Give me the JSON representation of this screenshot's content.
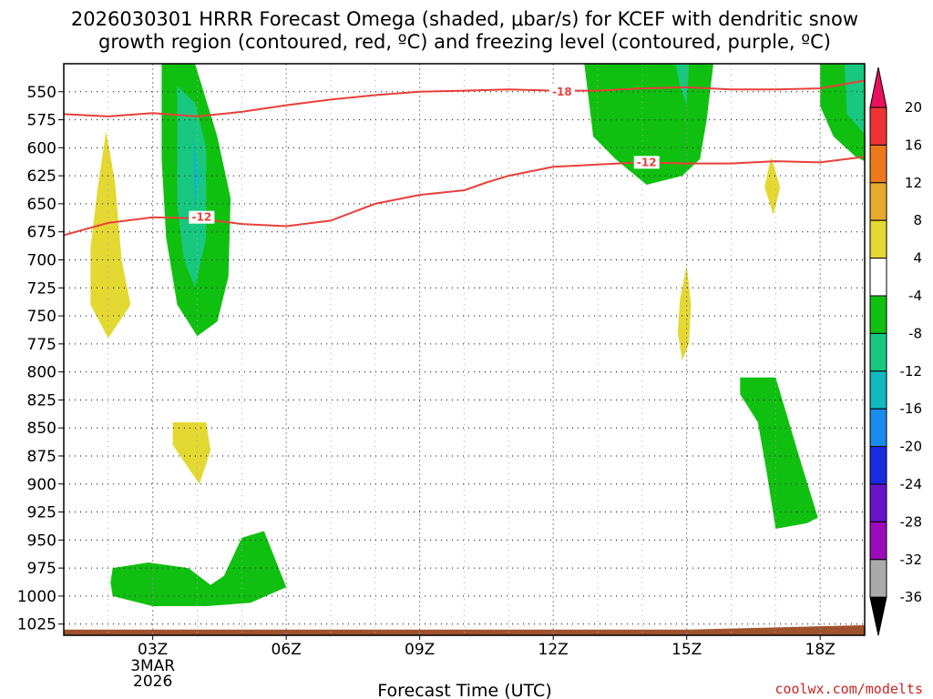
{
  "title_lines": [
    "2026030301 HRRR Forecast Omega (shaded, μbar/s) for KCEF with dendritic snow",
    "growth region (contoured, red, ºC) and freezing level (contoured, purple, ºC)"
  ],
  "credit": "coolwx.com/modelts",
  "chart_data": {
    "type": "contour",
    "title": "2026030301 HRRR Forecast Omega (shaded, μbar/s) for KCEF with dendritic snow growth region (contoured, red, ºC) and freezing level (contoured, purple, ºC)",
    "xlabel": "Forecast Time (UTC)",
    "ylabel": "",
    "xlim": [
      1.0,
      19.0
    ],
    "ylim": [
      1035,
      525
    ],
    "x_ticks": [
      {
        "value": 3,
        "label": "03Z",
        "sublabel": [
          "3MAR",
          "2026"
        ]
      },
      {
        "value": 6,
        "label": "06Z"
      },
      {
        "value": 9,
        "label": "09Z"
      },
      {
        "value": 12,
        "label": "12Z"
      },
      {
        "value": 15,
        "label": "15Z"
      },
      {
        "value": 18,
        "label": "18Z"
      }
    ],
    "y_ticks": [
      550,
      575,
      600,
      625,
      650,
      675,
      700,
      725,
      750,
      775,
      800,
      825,
      850,
      875,
      900,
      925,
      950,
      975,
      1000,
      1025
    ],
    "grid": true,
    "colorbar": {
      "labels": [
        "20",
        "16",
        "12",
        "8",
        "4",
        "-4",
        "-8",
        "-12",
        "-16",
        "-20",
        "-24",
        "-28",
        "-32",
        "-36"
      ],
      "colors": [
        "#e8115c",
        "#ec3434",
        "#ec7a1c",
        "#e8aa2c",
        "#e4d832",
        "#ffffff",
        "#10c010",
        "#18c880",
        "#10b8c0",
        "#1a8cec",
        "#1a2ce0",
        "#6a14c8",
        "#9a0cb8",
        "#aaaaaa",
        "#000000"
      ]
    },
    "shaded_regions": [
      {
        "level": "4 to 8",
        "color": "#e4d832",
        "points": [
          [
            1.95,
            585
          ],
          [
            2.15,
            630
          ],
          [
            2.3,
            700
          ],
          [
            2.5,
            740
          ],
          [
            2.0,
            770
          ],
          [
            1.6,
            740
          ],
          [
            1.6,
            690
          ],
          [
            1.75,
            640
          ]
        ]
      },
      {
        "level": "-4 to -8",
        "color": "#10c010",
        "points": [
          [
            3.2,
            525
          ],
          [
            3.95,
            525
          ],
          [
            4.45,
            590
          ],
          [
            4.75,
            645
          ],
          [
            4.7,
            715
          ],
          [
            4.45,
            755
          ],
          [
            4.0,
            768
          ],
          [
            3.55,
            740
          ],
          [
            3.3,
            680
          ],
          [
            3.2,
            610
          ]
        ]
      },
      {
        "level": "-8 to -12",
        "color": "#18c880",
        "points": [
          [
            3.55,
            545
          ],
          [
            3.95,
            560
          ],
          [
            4.2,
            600
          ],
          [
            4.2,
            680
          ],
          [
            3.95,
            725
          ],
          [
            3.7,
            700
          ],
          [
            3.55,
            650
          ]
        ]
      },
      {
        "level": "-12 to -16",
        "color": "#10b8c0",
        "points": [
          [
            3.9,
            590
          ],
          [
            4.05,
            625
          ],
          [
            3.95,
            655
          ]
        ]
      },
      {
        "level": "4 to 8",
        "color": "#e4d832",
        "points": [
          [
            3.45,
            845
          ],
          [
            4.2,
            845
          ],
          [
            4.3,
            870
          ],
          [
            4.05,
            900
          ],
          [
            3.7,
            880
          ],
          [
            3.45,
            865
          ]
        ]
      },
      {
        "level": "-4 to -8",
        "color": "#10c010",
        "points": [
          [
            2.1,
            975
          ],
          [
            2.9,
            970
          ],
          [
            3.8,
            975
          ],
          [
            4.3,
            990
          ],
          [
            4.6,
            982
          ],
          [
            5.0,
            948
          ],
          [
            5.5,
            942
          ],
          [
            6.0,
            992
          ],
          [
            5.2,
            1006
          ],
          [
            4.2,
            1009
          ],
          [
            3.0,
            1009
          ],
          [
            2.1,
            1000
          ],
          [
            2.05,
            988
          ]
        ]
      },
      {
        "level": "-4 to -8",
        "color": "#10c010",
        "points": [
          [
            12.7,
            525
          ],
          [
            15.6,
            525
          ],
          [
            15.45,
            575
          ],
          [
            15.3,
            610
          ],
          [
            14.9,
            625
          ],
          [
            14.1,
            633
          ],
          [
            13.4,
            610
          ],
          [
            12.9,
            590
          ]
        ]
      },
      {
        "level": "-8 to -12",
        "color": "#18c880",
        "points": [
          [
            14.75,
            525
          ],
          [
            15.05,
            525
          ],
          [
            15.0,
            562
          ],
          [
            14.85,
            545
          ]
        ]
      },
      {
        "level": "4 to 8",
        "color": "#e4d832",
        "points": [
          [
            16.9,
            608
          ],
          [
            17.1,
            635
          ],
          [
            16.95,
            660
          ],
          [
            16.75,
            635
          ]
        ]
      },
      {
        "level": "4 to 8",
        "color": "#e4d832",
        "points": [
          [
            15.0,
            705
          ],
          [
            15.1,
            740
          ],
          [
            15.05,
            775
          ],
          [
            14.9,
            790
          ],
          [
            14.8,
            765
          ],
          [
            14.85,
            735
          ]
        ]
      },
      {
        "level": "-4 to -8",
        "color": "#10c010",
        "points": [
          [
            18.0,
            525
          ],
          [
            19.0,
            525
          ],
          [
            19.0,
            612
          ],
          [
            18.8,
            608
          ],
          [
            18.3,
            590
          ],
          [
            18.0,
            563
          ]
        ]
      },
      {
        "level": "-8 to -12",
        "color": "#18c880",
        "points": [
          [
            18.55,
            525
          ],
          [
            19.0,
            525
          ],
          [
            19.0,
            588
          ],
          [
            18.6,
            570
          ]
        ]
      },
      {
        "level": "-4 to -8",
        "color": "#10c010",
        "points": [
          [
            16.2,
            805
          ],
          [
            17.0,
            805
          ],
          [
            17.3,
            845
          ],
          [
            17.6,
            885
          ],
          [
            17.95,
            930
          ],
          [
            17.7,
            935
          ],
          [
            17.0,
            940
          ],
          [
            16.8,
            890
          ],
          [
            16.6,
            845
          ],
          [
            16.2,
            820
          ]
        ]
      }
    ],
    "ground": {
      "color": "#a0522d",
      "points": [
        [
          1.0,
          1030
        ],
        [
          15.0,
          1030
        ],
        [
          17.0,
          1028
        ],
        [
          19.0,
          1026
        ],
        [
          19.0,
          1035
        ],
        [
          1.0,
          1035
        ]
      ]
    },
    "contours": [
      {
        "value": -18,
        "label": "-18",
        "label_at": [
          12.2,
          550
        ],
        "color": "#e8403a",
        "points": [
          [
            1.0,
            570
          ],
          [
            2.0,
            572
          ],
          [
            3.0,
            569
          ],
          [
            4.0,
            572
          ],
          [
            5.0,
            568
          ],
          [
            6.0,
            562
          ],
          [
            7.0,
            557
          ],
          [
            8.0,
            553
          ],
          [
            9.0,
            550
          ],
          [
            10.0,
            549
          ],
          [
            11.0,
            548
          ],
          [
            12.0,
            549
          ],
          [
            13.0,
            549
          ],
          [
            14.0,
            547
          ],
          [
            15.0,
            546
          ],
          [
            16.0,
            548
          ],
          [
            17.0,
            548
          ],
          [
            18.0,
            547
          ],
          [
            19.0,
            540
          ]
        ]
      },
      {
        "value": -12,
        "label": "-12",
        "label_at": [
          14.1,
          613
        ],
        "color": "#e8403a",
        "points": [
          [
            1.0,
            678
          ],
          [
            2.0,
            667
          ],
          [
            3.0,
            662
          ],
          [
            4.0,
            663
          ],
          [
            5.0,
            668
          ],
          [
            6.0,
            670
          ],
          [
            7.0,
            665
          ],
          [
            8.0,
            650
          ],
          [
            9.0,
            642
          ],
          [
            10.0,
            638
          ],
          [
            10.5,
            631
          ],
          [
            11.0,
            625
          ],
          [
            12.0,
            617
          ],
          [
            13.0,
            615
          ],
          [
            14.0,
            613
          ],
          [
            15.0,
            614
          ],
          [
            16.0,
            614
          ],
          [
            17.0,
            612
          ],
          [
            18.0,
            613
          ],
          [
            19.0,
            608
          ]
        ]
      },
      {
        "value": -12,
        "label": "-12",
        "label_at": [
          4.1,
          662
        ],
        "color": "#e8403a",
        "points": []
      }
    ]
  }
}
